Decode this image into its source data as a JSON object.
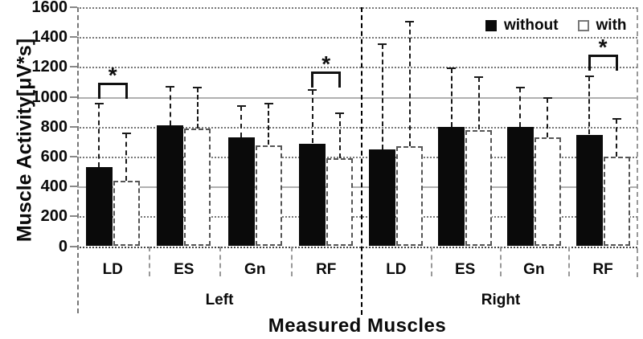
{
  "chart_data": {
    "type": "bar",
    "title": "",
    "xlabel": "Measured Muscles",
    "ylabel": "Muscle Activity[μV*s]",
    "ylim": [
      0,
      1600
    ],
    "yticks": [
      0,
      200,
      400,
      600,
      800,
      1000,
      1200,
      1400,
      1600
    ],
    "grid": "horizontal-dotted",
    "legend_position": "top-right-inside",
    "groups": [
      "Left",
      "Right"
    ],
    "categories": [
      "LD",
      "ES",
      "Gn",
      "RF"
    ],
    "legend": [
      "without",
      "with"
    ],
    "series": [
      {
        "name": "without",
        "group": "Left",
        "values": [
          530,
          810,
          730,
          690
        ],
        "err_upper": [
          425,
          260,
          210,
          355
        ]
      },
      {
        "name": "with",
        "group": "Left",
        "values": [
          440,
          790,
          680,
          590
        ],
        "err_upper": [
          315,
          270,
          275,
          300
        ]
      },
      {
        "name": "without",
        "group": "Right",
        "values": [
          650,
          800,
          800,
          750
        ],
        "err_upper": [
          705,
          390,
          260,
          390
        ]
      },
      {
        "name": "with",
        "group": "Right",
        "values": [
          670,
          780,
          730,
          600
        ],
        "err_upper": [
          835,
          350,
          260,
          250
        ]
      }
    ],
    "significance": [
      {
        "group": "Left",
        "category": "LD",
        "label": "*",
        "bracket_y": 1095
      },
      {
        "group": "Left",
        "category": "RF",
        "label": "*",
        "bracket_y": 1170
      },
      {
        "group": "Right",
        "category": "RF",
        "label": "*",
        "bracket_y": 1285
      }
    ]
  }
}
